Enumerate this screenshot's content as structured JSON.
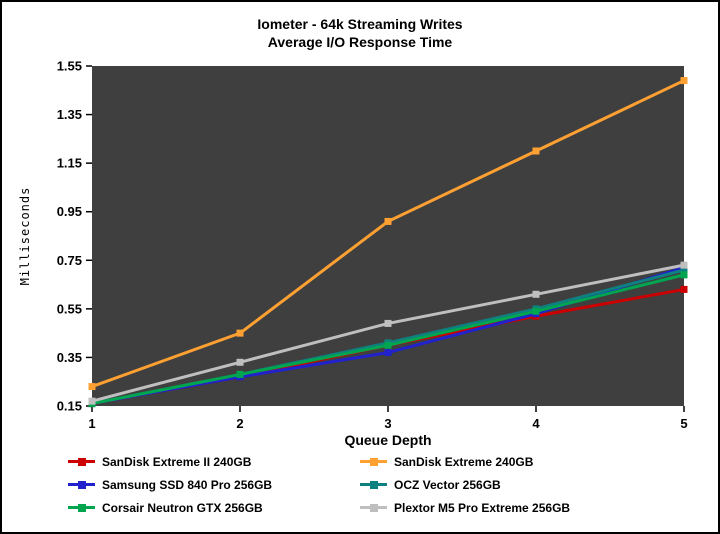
{
  "title": {
    "line1": "Iometer - 64k Streaming Writes",
    "line2": "Average I/O Response Time"
  },
  "chart_data": {
    "type": "line",
    "x": [
      1,
      2,
      3,
      4,
      5
    ],
    "xlabel": "Queue Depth",
    "ylabel": "Milliseconds",
    "ylim": [
      0.15,
      1.55
    ],
    "yticks": [
      0.15,
      0.35,
      0.55,
      0.75,
      0.95,
      1.15,
      1.35,
      1.55
    ],
    "plot_bg": "#3F3F3F",
    "grid": false,
    "legend_position": "bottom",
    "series": [
      {
        "name": "SanDisk Extreme II 240GB",
        "color": "#CC0000",
        "values": [
          0.16,
          0.27,
          0.4,
          0.52,
          0.63
        ]
      },
      {
        "name": "SanDisk Extreme 240GB",
        "color": "#FFA033",
        "values": [
          0.23,
          0.45,
          0.91,
          1.2,
          1.49
        ]
      },
      {
        "name": "Samsung SSD 840 Pro 256GB",
        "color": "#2222CC",
        "values": [
          0.16,
          0.27,
          0.37,
          0.53,
          0.72
        ]
      },
      {
        "name": "OCZ Vector 256GB",
        "color": "#0E8080",
        "values": [
          0.16,
          0.28,
          0.41,
          0.55,
          0.71
        ]
      },
      {
        "name": "Corsair Neutron GTX 256GB",
        "color": "#00A550",
        "values": [
          0.16,
          0.28,
          0.4,
          0.54,
          0.69
        ]
      },
      {
        "name": "Plextor M5 Pro Extreme 256GB",
        "color": "#BFBFBF",
        "values": [
          0.17,
          0.33,
          0.49,
          0.61,
          0.73
        ]
      }
    ]
  }
}
